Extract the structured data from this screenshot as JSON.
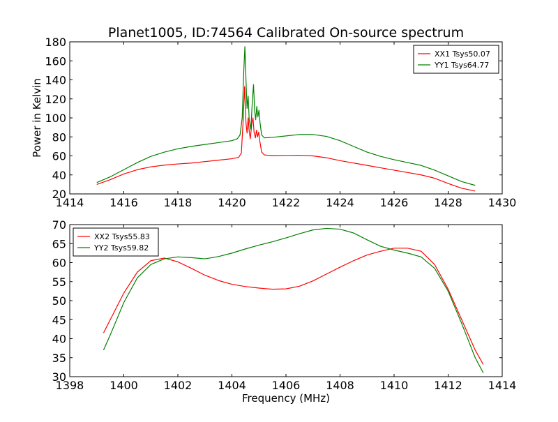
{
  "figure": {
    "title": "Planet1005, ID:74564 Calibrated On-source spectrum"
  },
  "chart_data": [
    {
      "type": "line",
      "title": "Planet1005, ID:74564 Calibrated On-source spectrum",
      "xlabel": "",
      "ylabel": "Power in Kelvin",
      "xlim": [
        1414,
        1430
      ],
      "ylim": [
        20,
        180
      ],
      "xticks": [
        1414,
        1416,
        1418,
        1420,
        1422,
        1424,
        1426,
        1428,
        1430
      ],
      "yticks": [
        20,
        40,
        60,
        80,
        100,
        120,
        140,
        160,
        180
      ],
      "grid": false,
      "legend": "top-right",
      "series": [
        {
          "name": "XX1 Tsys50.07",
          "color": "#ff0000",
          "points": [
            [
              1415.0,
              30
            ],
            [
              1415.5,
              35
            ],
            [
              1416.0,
              41
            ],
            [
              1416.5,
              45.5
            ],
            [
              1417.0,
              48.5
            ],
            [
              1417.5,
              50.3
            ],
            [
              1418.0,
              51.5
            ],
            [
              1418.5,
              52.5
            ],
            [
              1419.0,
              54
            ],
            [
              1419.5,
              55.5
            ],
            [
              1420.0,
              57
            ],
            [
              1420.25,
              58.5
            ],
            [
              1420.35,
              63
            ],
            [
              1420.42,
              100
            ],
            [
              1420.47,
              133
            ],
            [
              1420.52,
              95
            ],
            [
              1420.56,
              84
            ],
            [
              1420.6,
              100
            ],
            [
              1420.64,
              86
            ],
            [
              1420.68,
              78
            ],
            [
              1420.74,
              95
            ],
            [
              1420.78,
              100
            ],
            [
              1420.82,
              85
            ],
            [
              1420.87,
              79
            ],
            [
              1420.91,
              87
            ],
            [
              1420.95,
              80
            ],
            [
              1420.99,
              85
            ],
            [
              1421.03,
              76
            ],
            [
              1421.1,
              64
            ],
            [
              1421.2,
              61
            ],
            [
              1421.5,
              60.3
            ],
            [
              1422.0,
              60.5
            ],
            [
              1422.5,
              60.7
            ],
            [
              1423.0,
              60
            ],
            [
              1423.5,
              58
            ],
            [
              1424.0,
              55
            ],
            [
              1424.5,
              52.5
            ],
            [
              1425.0,
              50
            ],
            [
              1425.5,
              47.5
            ],
            [
              1426.0,
              45
            ],
            [
              1426.5,
              42.5
            ],
            [
              1427.0,
              40
            ],
            [
              1427.5,
              36.5
            ],
            [
              1428.0,
              31
            ],
            [
              1428.5,
              26
            ],
            [
              1429.0,
              23
            ]
          ]
        },
        {
          "name": "YY1 Tsys64.77",
          "color": "#008000",
          "points": [
            [
              1415.0,
              32
            ],
            [
              1415.5,
              38
            ],
            [
              1416.0,
              45.5
            ],
            [
              1416.5,
              53
            ],
            [
              1417.0,
              59.5
            ],
            [
              1417.5,
              64
            ],
            [
              1418.0,
              67.5
            ],
            [
              1418.5,
              70
            ],
            [
              1419.0,
              72
            ],
            [
              1419.5,
              74
            ],
            [
              1420.0,
              76
            ],
            [
              1420.2,
              78
            ],
            [
              1420.3,
              82
            ],
            [
              1420.38,
              100
            ],
            [
              1420.44,
              150
            ],
            [
              1420.48,
              175
            ],
            [
              1420.52,
              140
            ],
            [
              1420.56,
              110
            ],
            [
              1420.6,
              123
            ],
            [
              1420.64,
              98
            ],
            [
              1420.7,
              88
            ],
            [
              1420.76,
              120
            ],
            [
              1420.8,
              135
            ],
            [
              1420.84,
              108
            ],
            [
              1420.88,
              98
            ],
            [
              1420.92,
              112
            ],
            [
              1420.96,
              101
            ],
            [
              1421.0,
              108
            ],
            [
              1421.04,
              95
            ],
            [
              1421.1,
              82
            ],
            [
              1421.2,
              79
            ],
            [
              1421.5,
              79.5
            ],
            [
              1422.0,
              81
            ],
            [
              1422.5,
              82.5
            ],
            [
              1423.0,
              82.5
            ],
            [
              1423.5,
              80.5
            ],
            [
              1424.0,
              76
            ],
            [
              1424.5,
              70
            ],
            [
              1425.0,
              64
            ],
            [
              1425.5,
              59.5
            ],
            [
              1426.0,
              56
            ],
            [
              1426.5,
              53
            ],
            [
              1427.0,
              50
            ],
            [
              1427.5,
              45
            ],
            [
              1428.0,
              39
            ],
            [
              1428.5,
              33
            ],
            [
              1429.0,
              29
            ]
          ]
        }
      ]
    },
    {
      "type": "line",
      "title": "",
      "xlabel": "Frequency (MHz)",
      "ylabel": "",
      "xlim": [
        1398,
        1414
      ],
      "ylim": [
        30,
        70
      ],
      "xticks": [
        1398,
        1400,
        1402,
        1404,
        1406,
        1408,
        1410,
        1412,
        1414
      ],
      "yticks": [
        30,
        35,
        40,
        45,
        50,
        55,
        60,
        65,
        70
      ],
      "grid": false,
      "legend": "top-left",
      "series": [
        {
          "name": "XX2 Tsys55.83",
          "color": "#ff0000",
          "points": [
            [
              1399.25,
              41.5
            ],
            [
              1399.5,
              45
            ],
            [
              1400.0,
              52
            ],
            [
              1400.5,
              57.5
            ],
            [
              1401.0,
              60.5
            ],
            [
              1401.5,
              61.2
            ],
            [
              1402.0,
              60.2
            ],
            [
              1402.5,
              58.5
            ],
            [
              1403.0,
              56.7
            ],
            [
              1403.5,
              55.3
            ],
            [
              1404.0,
              54.3
            ],
            [
              1404.5,
              53.7
            ],
            [
              1405.0,
              53.3
            ],
            [
              1405.5,
              53
            ],
            [
              1406.0,
              53.1
            ],
            [
              1406.5,
              53.8
            ],
            [
              1407.0,
              55.2
            ],
            [
              1407.5,
              57
            ],
            [
              1408.0,
              58.8
            ],
            [
              1408.5,
              60.5
            ],
            [
              1409.0,
              62
            ],
            [
              1409.5,
              63
            ],
            [
              1410.0,
              63.8
            ],
            [
              1410.5,
              63.8
            ],
            [
              1411.0,
              63
            ],
            [
              1411.5,
              59.5
            ],
            [
              1412.0,
              53
            ],
            [
              1412.5,
              45
            ],
            [
              1413.0,
              37
            ],
            [
              1413.3,
              33.2
            ]
          ]
        },
        {
          "name": "YY2 Tsys59.82",
          "color": "#008000",
          "points": [
            [
              1399.25,
              37
            ],
            [
              1399.5,
              41
            ],
            [
              1400.0,
              49.5
            ],
            [
              1400.5,
              56
            ],
            [
              1401.0,
              59.5
            ],
            [
              1401.5,
              61
            ],
            [
              1402.0,
              61.5
            ],
            [
              1402.5,
              61.3
            ],
            [
              1403.0,
              61
            ],
            [
              1403.5,
              61.6
            ],
            [
              1404.0,
              62.5
            ],
            [
              1404.5,
              63.6
            ],
            [
              1405.0,
              64.6
            ],
            [
              1405.5,
              65.5
            ],
            [
              1406.0,
              66.5
            ],
            [
              1406.5,
              67.6
            ],
            [
              1407.0,
              68.6
            ],
            [
              1407.5,
              69
            ],
            [
              1408.0,
              68.8
            ],
            [
              1408.5,
              67.8
            ],
            [
              1409.0,
              66
            ],
            [
              1409.5,
              64.3
            ],
            [
              1410.0,
              63.3
            ],
            [
              1410.5,
              62.5
            ],
            [
              1411.0,
              61.5
            ],
            [
              1411.5,
              58.5
            ],
            [
              1412.0,
              52.5
            ],
            [
              1412.5,
              44
            ],
            [
              1413.0,
              35
            ],
            [
              1413.3,
              31
            ]
          ]
        }
      ]
    }
  ]
}
